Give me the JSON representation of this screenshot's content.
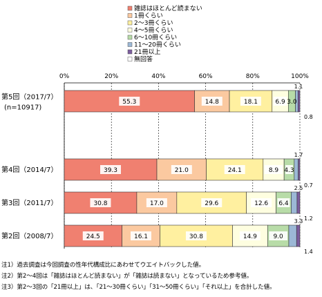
{
  "chart_data": {
    "type": "bar",
    "orientation": "horizontal",
    "stacked": true,
    "categories": [
      {
        "label": "第5回（2017/7）",
        "sublabel": "(n=10917)"
      },
      {
        "label": "第4回（2014/7）",
        "sublabel": ""
      },
      {
        "label": "第3回（2011/7）",
        "sublabel": ""
      },
      {
        "label": "第2回（2008/7）",
        "sublabel": ""
      }
    ],
    "series": [
      {
        "name": "雑誌はほとんど読まない",
        "color": "#f08070",
        "values": [
          55.3,
          39.3,
          30.8,
          24.5
        ]
      },
      {
        "name": "1冊くらい",
        "color": "#fbc9a0",
        "values": [
          14.8,
          21.0,
          17.0,
          16.1
        ]
      },
      {
        "name": "2～3冊くらい",
        "color": "#fff0a0",
        "values": [
          18.1,
          24.1,
          29.6,
          30.8
        ]
      },
      {
        "name": "4～5冊くらい",
        "color": "#fefee0",
        "values": [
          6.9,
          8.9,
          12.6,
          14.9
        ]
      },
      {
        "name": "6～10冊くらい",
        "color": "#b8dca8",
        "values": [
          3.0,
          4.3,
          6.4,
          9.0
        ]
      },
      {
        "name": "11～20冊くらい",
        "color": "#9cb8d6",
        "values": [
          1.1,
          1.7,
          2.5,
          3.3
        ]
      },
      {
        "name": "21冊以上",
        "color": "#7c5e9e",
        "values": [
          0.8,
          0.7,
          1.2,
          1.4
        ]
      },
      {
        "name": "無回答",
        "color": "#ffffff",
        "values": [
          0,
          0,
          0,
          0
        ]
      }
    ],
    "xlim": [
      0,
      100
    ],
    "xticks": [
      "0%",
      "20%",
      "40%",
      "60%",
      "80%",
      "100%"
    ],
    "data_labels": [
      [
        "55.3",
        "14.8",
        "18.1",
        "6.9",
        "3.0",
        "1.1",
        "0.8"
      ],
      [
        "39.3",
        "21.0",
        "24.1",
        "8.9",
        "4.3",
        "1.7",
        "0.7"
      ],
      [
        "30.8",
        "17.0",
        "29.6",
        "12.6",
        "6.4",
        "2.5",
        "1.2"
      ],
      [
        "24.5",
        "16.1",
        "30.8",
        "14.9",
        "9.0",
        "3.3",
        "1.4"
      ]
    ],
    "legend_position": "top",
    "grid": true
  },
  "notes": [
    "注1）過去調査は今回調査の性年代構成比にあわせてウエイトバックした値。",
    "注2）第2～4回は「雑誌はほとんど読まない」が「雑誌は読まない」となっているため参考値。",
    "注3）第2～3回の「21冊以上」は、「21～30冊くらい」「31～50冊くらい」「それ以上」を合計した値。"
  ]
}
